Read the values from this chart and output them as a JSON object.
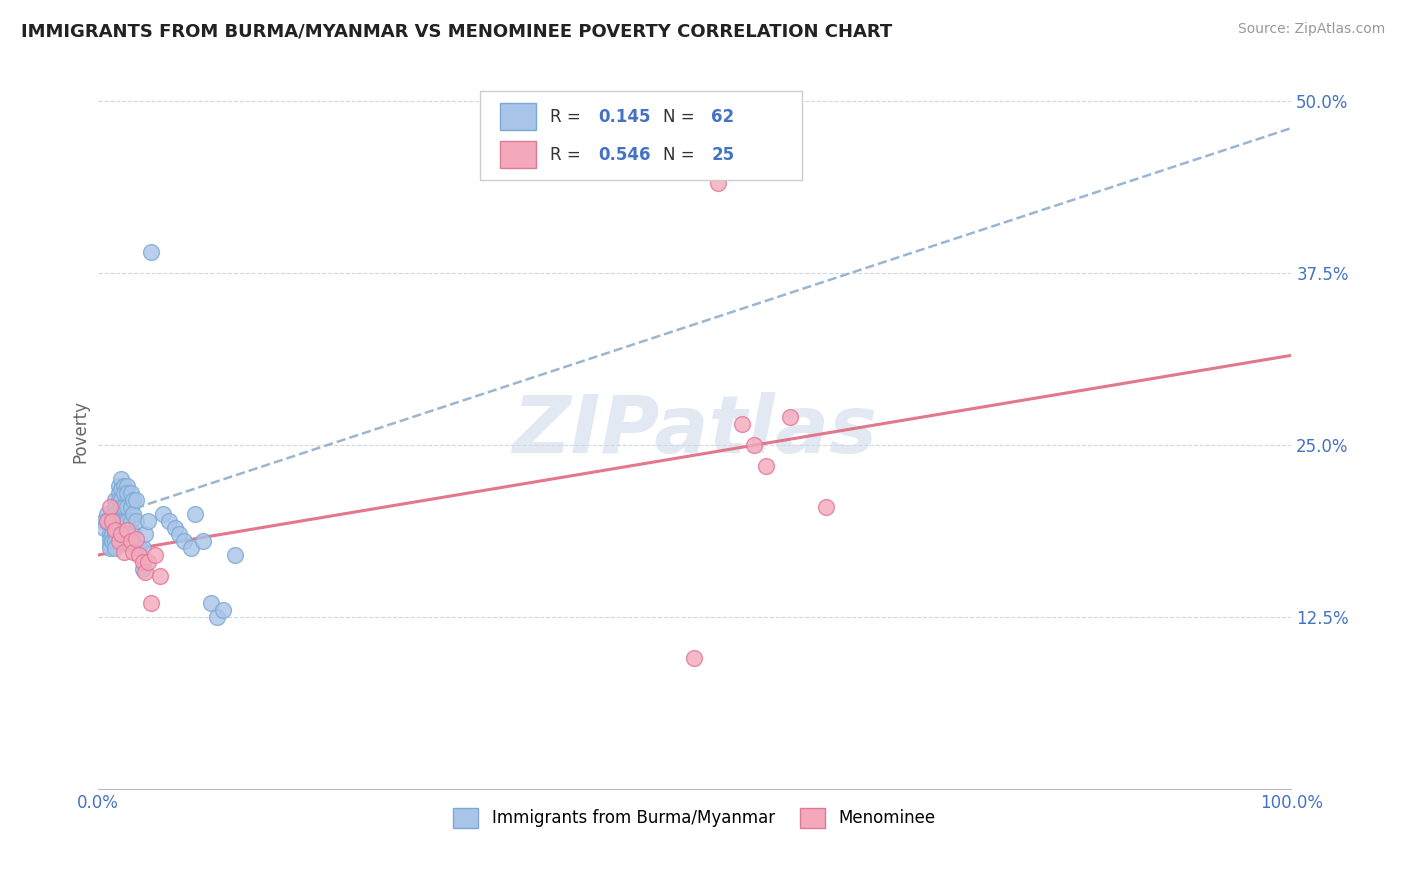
{
  "title": "IMMIGRANTS FROM BURMA/MYANMAR VS MENOMINEE POVERTY CORRELATION CHART",
  "source_text": "Source: ZipAtlas.com",
  "ylabel": "Poverty",
  "xlim": [
    0,
    1.0
  ],
  "ylim": [
    0,
    0.52
  ],
  "ytick_values": [
    0.0,
    0.125,
    0.25,
    0.375,
    0.5
  ],
  "ytick_labels": [
    "",
    "12.5%",
    "25.0%",
    "37.5%",
    "50.0%"
  ],
  "legend_R1_val": "0.145",
  "legend_N1_val": "62",
  "legend_R2_val": "0.546",
  "legend_N2_val": "25",
  "blue_color": "#a8c4e8",
  "pink_color": "#f4a8bb",
  "blue_edge": "#7aaad4",
  "pink_edge": "#e07898",
  "line_blue_color": "#88aacc",
  "line_pink_color": "#e06880",
  "watermark": "ZIPatlas",
  "watermark_color": "#cdd8e8",
  "blue_scatter_x": [
    0.005,
    0.005,
    0.008,
    0.008,
    0.01,
    0.01,
    0.01,
    0.01,
    0.012,
    0.012,
    0.012,
    0.012,
    0.015,
    0.015,
    0.015,
    0.015,
    0.015,
    0.015,
    0.015,
    0.015,
    0.018,
    0.018,
    0.018,
    0.02,
    0.02,
    0.02,
    0.02,
    0.02,
    0.022,
    0.022,
    0.022,
    0.022,
    0.025,
    0.025,
    0.025,
    0.025,
    0.028,
    0.028,
    0.028,
    0.03,
    0.03,
    0.03,
    0.032,
    0.032,
    0.035,
    0.038,
    0.038,
    0.04,
    0.042,
    0.045,
    0.055,
    0.06,
    0.065,
    0.068,
    0.072,
    0.078,
    0.082,
    0.088,
    0.095,
    0.1,
    0.105,
    0.115
  ],
  "blue_scatter_y": [
    0.195,
    0.19,
    0.2,
    0.195,
    0.185,
    0.182,
    0.178,
    0.175,
    0.198,
    0.192,
    0.185,
    0.18,
    0.21,
    0.205,
    0.2,
    0.195,
    0.19,
    0.185,
    0.18,
    0.175,
    0.22,
    0.215,
    0.21,
    0.225,
    0.218,
    0.21,
    0.205,
    0.195,
    0.22,
    0.215,
    0.205,
    0.195,
    0.22,
    0.215,
    0.205,
    0.195,
    0.215,
    0.205,
    0.195,
    0.21,
    0.2,
    0.185,
    0.21,
    0.195,
    0.175,
    0.175,
    0.16,
    0.185,
    0.195,
    0.39,
    0.2,
    0.195,
    0.19,
    0.185,
    0.18,
    0.175,
    0.2,
    0.18,
    0.135,
    0.125,
    0.13,
    0.17
  ],
  "pink_scatter_x": [
    0.008,
    0.01,
    0.012,
    0.015,
    0.018,
    0.02,
    0.022,
    0.025,
    0.028,
    0.03,
    0.032,
    0.035,
    0.038,
    0.04,
    0.042,
    0.045,
    0.048,
    0.052,
    0.5,
    0.52,
    0.54,
    0.55,
    0.56,
    0.58,
    0.61
  ],
  "pink_scatter_y": [
    0.195,
    0.205,
    0.195,
    0.188,
    0.18,
    0.185,
    0.172,
    0.188,
    0.18,
    0.172,
    0.182,
    0.17,
    0.165,
    0.158,
    0.165,
    0.135,
    0.17,
    0.155,
    0.095,
    0.44,
    0.265,
    0.25,
    0.235,
    0.27,
    0.205
  ],
  "blue_line_x0": 0.0,
  "blue_line_y0": 0.195,
  "blue_line_x1": 1.0,
  "blue_line_y1": 0.48,
  "pink_line_x0": 0.0,
  "pink_line_y0": 0.17,
  "pink_line_x1": 1.0,
  "pink_line_y1": 0.315
}
